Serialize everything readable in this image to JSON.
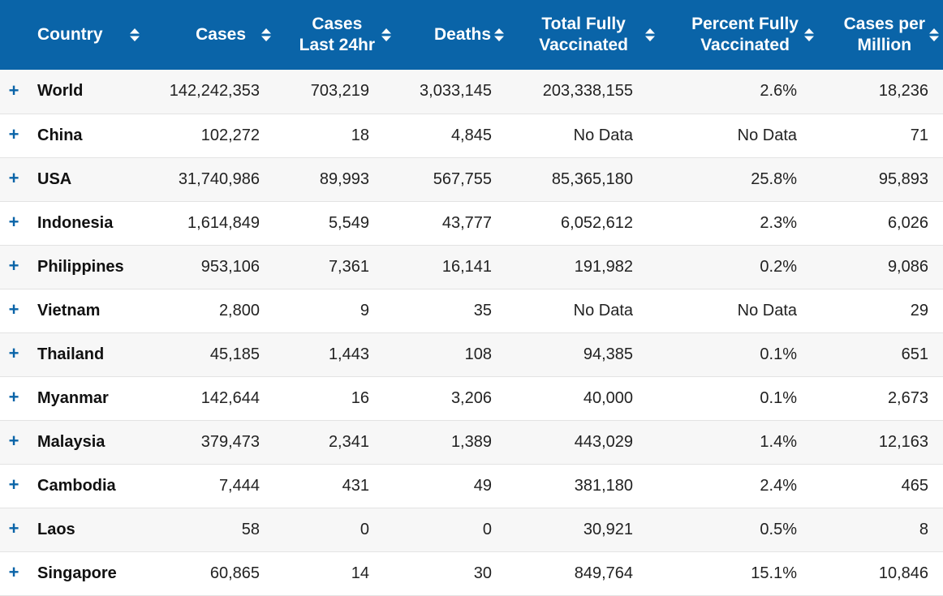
{
  "colors": {
    "header_bg": "#0a64a8",
    "expand_icon": "#0a64a8",
    "row_alt": "#f7f7f7"
  },
  "header": {
    "country": "Country",
    "cases": "Cases",
    "cases24_line1": "Cases",
    "cases24_line2": "Last 24hr",
    "deaths": "Deaths",
    "total_vax_line1": "Total Fully",
    "total_vax_line2": "Vaccinated",
    "pct_vax_line1": "Percent Fully",
    "pct_vax_line2": "Vaccinated",
    "cpm_line1": "Cases per",
    "cpm_line2": "Million"
  },
  "expand_symbol": "+",
  "rows": [
    {
      "country": "World",
      "cases": "142,242,353",
      "cases24": "703,219",
      "deaths": "3,033,145",
      "total_vax": "203,338,155",
      "pct_vax": "2.6%",
      "cpm": "18,236"
    },
    {
      "country": "China",
      "cases": "102,272",
      "cases24": "18",
      "deaths": "4,845",
      "total_vax": "No Data",
      "pct_vax": "No Data",
      "cpm": "71"
    },
    {
      "country": "USA",
      "cases": "31,740,986",
      "cases24": "89,993",
      "deaths": "567,755",
      "total_vax": "85,365,180",
      "pct_vax": "25.8%",
      "cpm": "95,893"
    },
    {
      "country": "Indonesia",
      "cases": "1,614,849",
      "cases24": "5,549",
      "deaths": "43,777",
      "total_vax": "6,052,612",
      "pct_vax": "2.3%",
      "cpm": "6,026"
    },
    {
      "country": "Philippines",
      "cases": "953,106",
      "cases24": "7,361",
      "deaths": "16,141",
      "total_vax": "191,982",
      "pct_vax": "0.2%",
      "cpm": "9,086"
    },
    {
      "country": "Vietnam",
      "cases": "2,800",
      "cases24": "9",
      "deaths": "35",
      "total_vax": "No Data",
      "pct_vax": "No Data",
      "cpm": "29"
    },
    {
      "country": "Thailand",
      "cases": "45,185",
      "cases24": "1,443",
      "deaths": "108",
      "total_vax": "94,385",
      "pct_vax": "0.1%",
      "cpm": "651"
    },
    {
      "country": "Myanmar",
      "cases": "142,644",
      "cases24": "16",
      "deaths": "3,206",
      "total_vax": "40,000",
      "pct_vax": "0.1%",
      "cpm": "2,673"
    },
    {
      "country": "Malaysia",
      "cases": "379,473",
      "cases24": "2,341",
      "deaths": "1,389",
      "total_vax": "443,029",
      "pct_vax": "1.4%",
      "cpm": "12,163"
    },
    {
      "country": "Cambodia",
      "cases": "7,444",
      "cases24": "431",
      "deaths": "49",
      "total_vax": "381,180",
      "pct_vax": "2.4%",
      "cpm": "465"
    },
    {
      "country": "Laos",
      "cases": "58",
      "cases24": "0",
      "deaths": "0",
      "total_vax": "30,921",
      "pct_vax": "0.5%",
      "cpm": "8"
    },
    {
      "country": "Singapore",
      "cases": "60,865",
      "cases24": "14",
      "deaths": "30",
      "total_vax": "849,764",
      "pct_vax": "15.1%",
      "cpm": "10,846"
    }
  ]
}
